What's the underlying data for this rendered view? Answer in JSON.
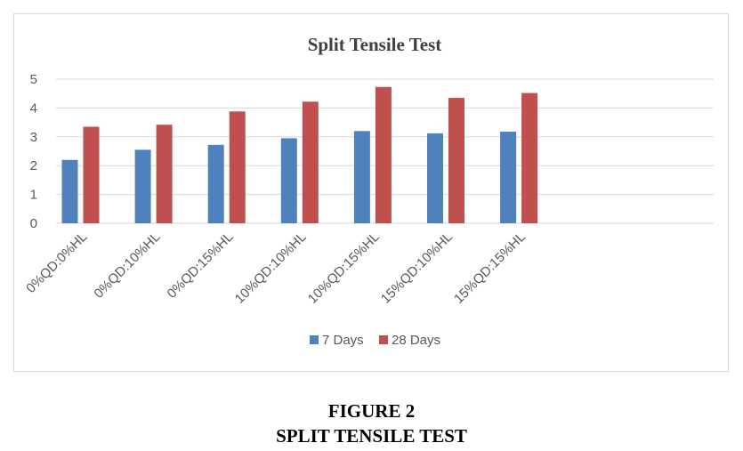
{
  "chart_data": {
    "type": "bar",
    "title": "Split Tensile Test",
    "categories": [
      "0%QD:0%HL",
      "0%QD:10%HL",
      "0%QD:15%HL",
      "10%QD:10%HL",
      "10%QD:15%HL",
      "15%QD:10%HL",
      "15%QD:15%HL"
    ],
    "series": [
      {
        "name": "7 Days",
        "color": "#4f81bd",
        "values": [
          2.2,
          2.55,
          2.72,
          2.95,
          3.2,
          3.12,
          3.18
        ]
      },
      {
        "name": "28 Days",
        "color": "#c0504d",
        "values": [
          3.35,
          3.42,
          3.88,
          4.22,
          4.73,
          4.35,
          4.52
        ]
      }
    ],
    "y_ticks": [
      "0",
      "1",
      "2",
      "3",
      "4",
      "5"
    ],
    "ylim": [
      0,
      5
    ],
    "xlabel": "",
    "ylabel": "",
    "grid": true,
    "legend_position": "bottom"
  },
  "caption": {
    "figure_number": "FIGURE 2",
    "figure_title": "SPLIT TENSILE TEST"
  }
}
